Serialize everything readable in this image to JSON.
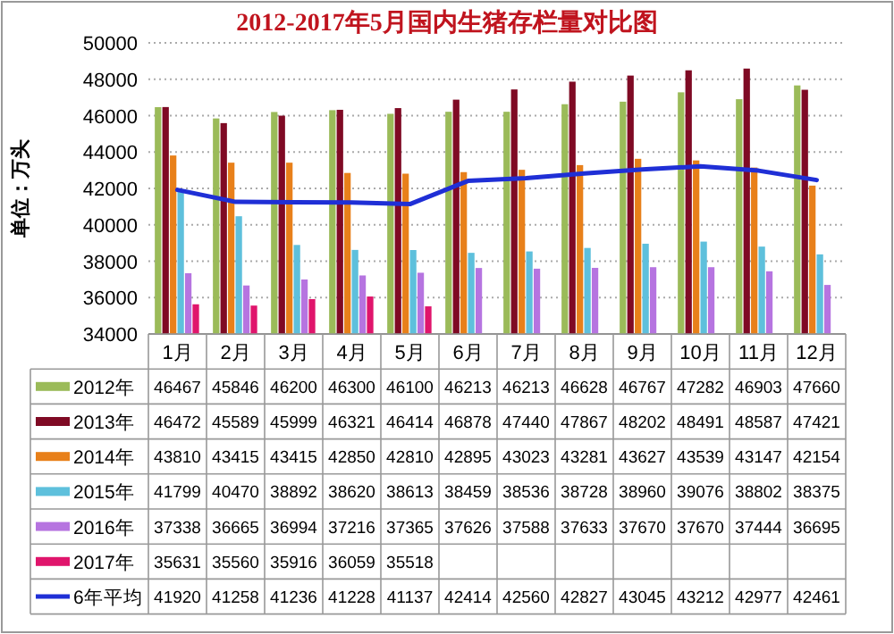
{
  "chart_data": {
    "type": "bar",
    "title": "2012-2017年5月国内生猪存栏量对比图",
    "ylabel": "单位：万头",
    "categories": [
      "1月",
      "2月",
      "3月",
      "4月",
      "5月",
      "6月",
      "7月",
      "8月",
      "9月",
      "10月",
      "11月",
      "12月"
    ],
    "series": [
      {
        "name": "2012年",
        "color": "#9bbb59",
        "values": [
          46467,
          45846,
          46200,
          46300,
          46100,
          46213,
          46213,
          46628,
          46767,
          47282,
          46903,
          47660
        ]
      },
      {
        "name": "2013年",
        "color": "#7f0a24",
        "values": [
          46472,
          45589,
          45999,
          46321,
          46414,
          46878,
          47440,
          47867,
          48202,
          48491,
          48587,
          47421
        ]
      },
      {
        "name": "2014年",
        "color": "#e8801a",
        "values": [
          43810,
          43415,
          43415,
          42850,
          42810,
          42895,
          43023,
          43281,
          43627,
          43539,
          43147,
          42154
        ]
      },
      {
        "name": "2015年",
        "color": "#5ec0dc",
        "values": [
          41799,
          40470,
          38892,
          38620,
          38613,
          38459,
          38536,
          38728,
          38960,
          39076,
          38802,
          38375
        ]
      },
      {
        "name": "2016年",
        "color": "#b674e0",
        "values": [
          37338,
          36665,
          36994,
          37216,
          37365,
          37626,
          37588,
          37633,
          37670,
          37670,
          37444,
          36695
        ]
      },
      {
        "name": "2017年",
        "color": "#e0156c",
        "values": [
          35631,
          35560,
          35916,
          36059,
          35518,
          null,
          null,
          null,
          null,
          null,
          null,
          null
        ]
      },
      {
        "name": "6年平均",
        "color": "#1f2fd6",
        "type": "line",
        "values": [
          41920,
          41258,
          41236,
          41228,
          41137,
          42414,
          42560,
          42827,
          43045,
          43212,
          42977,
          42461
        ]
      }
    ],
    "ylim": [
      34000,
      50000
    ],
    "yticks": [
      34000,
      36000,
      38000,
      40000,
      42000,
      44000,
      46000,
      48000,
      50000
    ],
    "grid": "y",
    "data_labels": true,
    "legend": "bottom"
  }
}
